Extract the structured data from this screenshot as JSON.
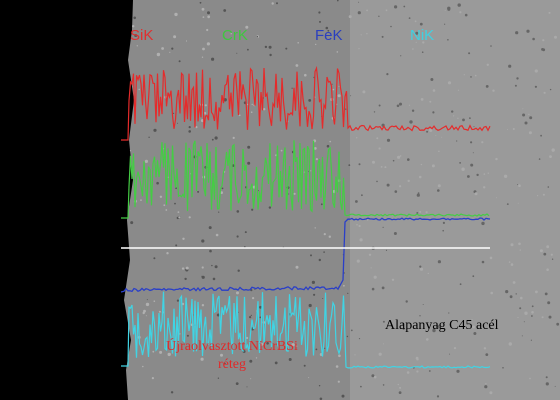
{
  "labels": {
    "si": "SiK",
    "cr": "CrK",
    "fe": "FeK",
    "ni": "NiK"
  },
  "annotations": {
    "substrate": "Alapanyag C45 acél",
    "coating_line1": "Újraolvasztott NiCrBSi",
    "coating_line2": "réteg"
  }
}
